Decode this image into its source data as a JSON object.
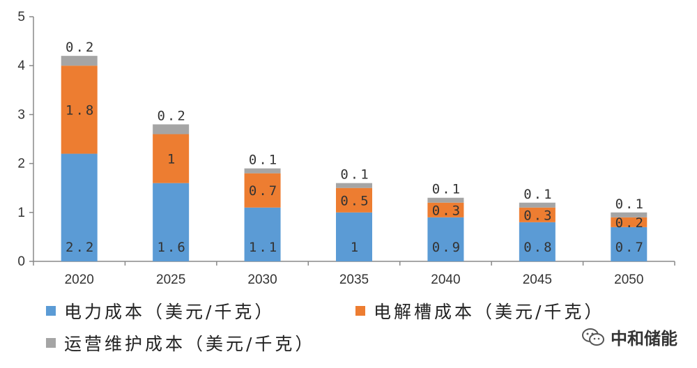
{
  "chart_data": {
    "type": "bar",
    "stacked": true,
    "categories": [
      "2020",
      "2025",
      "2030",
      "2035",
      "2040",
      "2045",
      "2050"
    ],
    "series": [
      {
        "name": "电力成本（美元/千克）",
        "color": "#5b9bd5",
        "values": [
          2.2,
          1.6,
          1.1,
          1,
          0.9,
          0.8,
          0.7
        ],
        "labels": [
          "2.2",
          "1.6",
          "1.1",
          "1",
          "0.9",
          "0.8",
          "0.7"
        ]
      },
      {
        "name": "电解槽成本（美元/千克）",
        "color": "#ed7d31",
        "values": [
          1.8,
          1,
          0.7,
          0.5,
          0.3,
          0.3,
          0.2
        ],
        "labels": [
          "1.8",
          "1",
          "0.7",
          "0.5",
          "0.3",
          "0.3",
          "0.2"
        ]
      },
      {
        "name": "运营维护成本（美元/千克）",
        "color": "#a5a5a5",
        "values": [
          0.2,
          0.2,
          0.1,
          0.1,
          0.1,
          0.1,
          0.1
        ],
        "labels": [
          "0.2",
          "0.2",
          "0.1",
          "0.1",
          "0.1",
          "0.1",
          "0.1"
        ]
      }
    ],
    "y_ticks": [
      "0",
      "1",
      "2",
      "3",
      "4",
      "5"
    ],
    "ylim": [
      0,
      5
    ],
    "grid": false,
    "legend_position": "bottom"
  },
  "watermark": {
    "text": "中和储能",
    "icon": "wechat-icon"
  }
}
